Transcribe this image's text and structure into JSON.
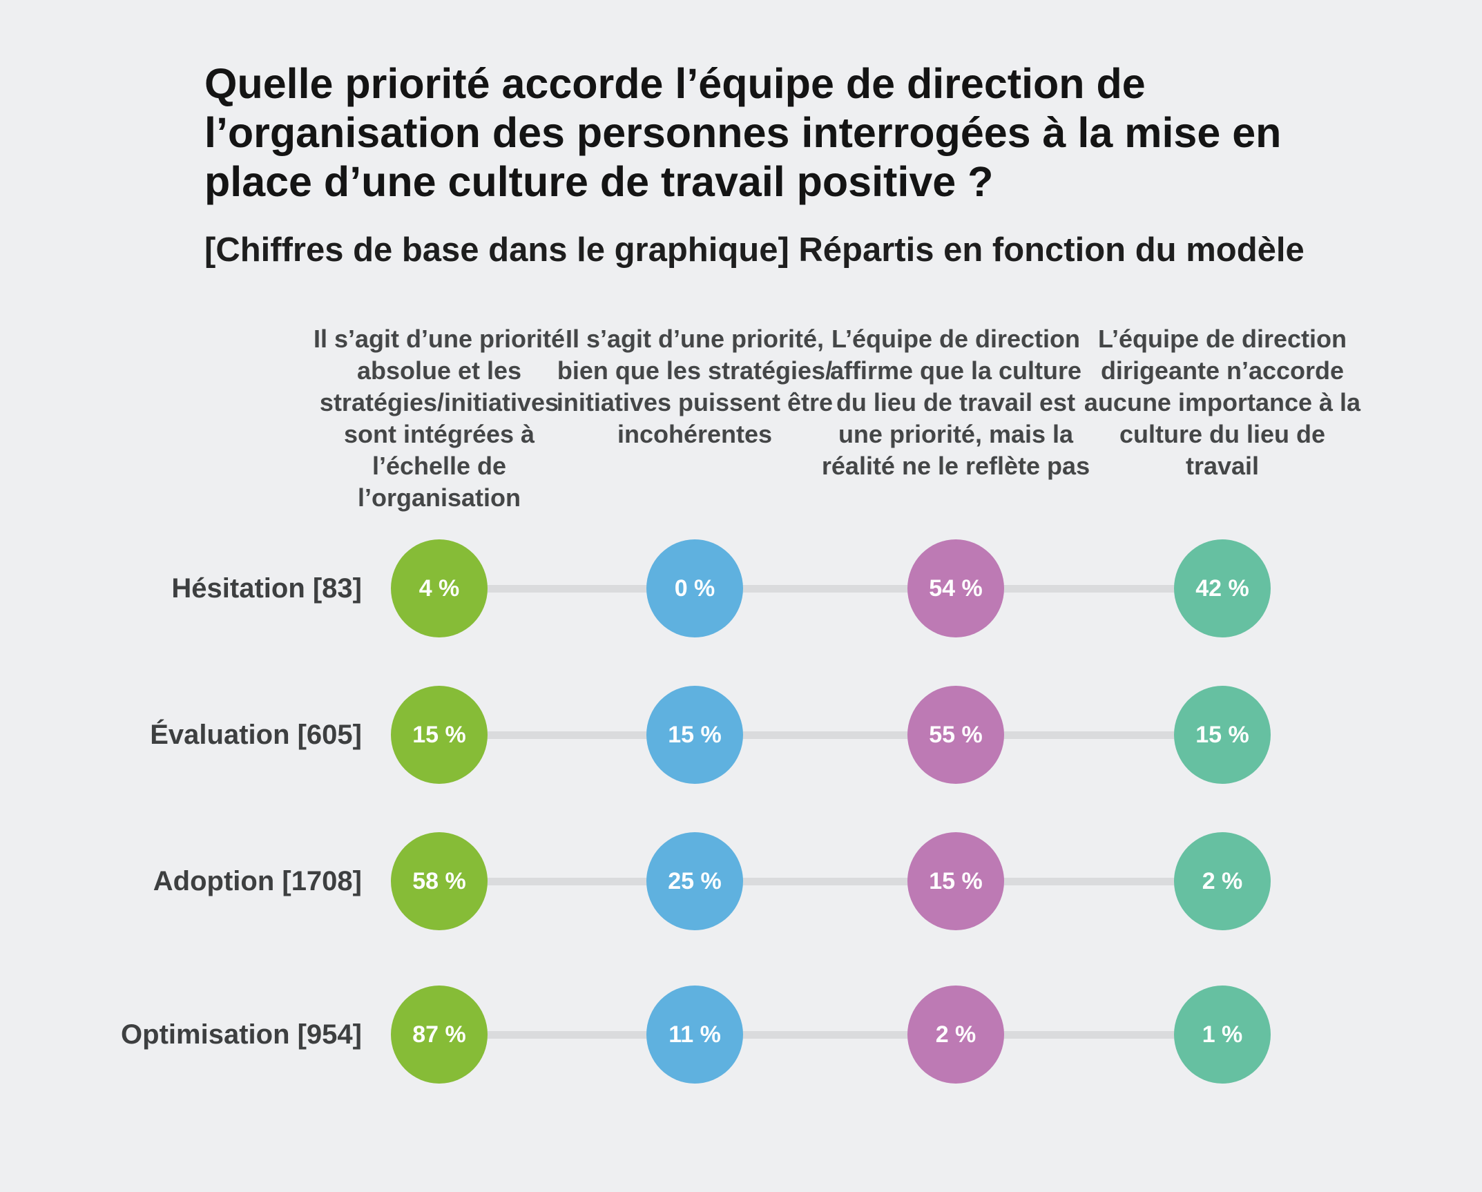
{
  "chart_data": {
    "type": "table",
    "title": "Quelle priorité accorde l’équipe de direction de l’organisation des personnes interrogées à la mise en place d’une culture de travail positive ?",
    "subtitle": "[Chiffres de base dans le graphique] Répartis en fonction du modèle",
    "columns": [
      "Il s’agit d’une priorité absolue et les stratégies/initiatives sont intégrées à l’échelle de l’organisation",
      "Il s’agit d’une priorité, bien que les stratégies/ initiatives puissent être incohérentes",
      "L’équipe de direction affirme que la culture du lieu de travail est une priorité, mais la réalité ne le reflète pas",
      "L’équipe de direction dirigeante n’accorde aucune importance à la culture du lieu de travail"
    ],
    "column_colors": [
      "#86bc37",
      "#5fb1df",
      "#bd7ab4",
      "#66c0a1"
    ],
    "rows": [
      {
        "label": "Hésitation [83]",
        "values": [
          4,
          0,
          54,
          42
        ],
        "labels": [
          "4 %",
          "0 %",
          "54 %",
          "42 %"
        ]
      },
      {
        "label": "Évaluation [605]",
        "values": [
          15,
          15,
          55,
          15
        ],
        "labels": [
          "15 %",
          "15 %",
          "55 %",
          "15 %"
        ]
      },
      {
        "label": "Adoption [1708]",
        "values": [
          58,
          25,
          15,
          2
        ],
        "labels": [
          "58 %",
          "25 %",
          "15 %",
          "2 %"
        ]
      },
      {
        "label": "Optimisation [954]",
        "values": [
          87,
          11,
          2,
          1
        ],
        "labels": [
          "87 %",
          "11 %",
          "2 %",
          "1 %"
        ]
      }
    ]
  }
}
